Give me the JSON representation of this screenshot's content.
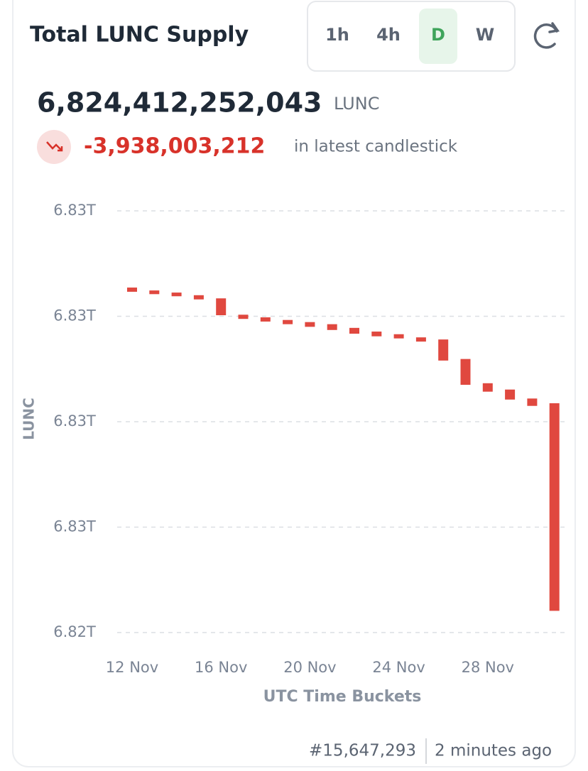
{
  "header": {
    "title": "Total LUNC Supply",
    "intervals": [
      "1h",
      "4h",
      "D",
      "W"
    ],
    "supply": "6,824,412,252,043",
    "unit": "LUNC",
    "change": "-3,938,003,212",
    "change_note": "in latest candlestick"
  },
  "chart_data": {
    "type": "candlestick",
    "ylabel": "LUNC",
    "xlabel": "UTC Time Buckets",
    "color": "#e0483f",
    "grid": true,
    "categories": [
      "12 Nov",
      null,
      null,
      null,
      "16 Nov",
      null,
      null,
      null,
      "20 Nov",
      null,
      null,
      null,
      "24 Nov",
      null,
      null,
      null,
      "28 Nov",
      null,
      null,
      null
    ],
    "open": [
      6830545000000,
      6830490000000,
      6830450000000,
      6830400000000,
      6830340000000,
      6830030000000,
      6829980000000,
      6829930000000,
      6829890000000,
      6829850000000,
      6829780000000,
      6829710000000,
      6829660000000,
      6829600000000,
      6829560000000,
      6829190000000,
      6828730000000,
      6828610000000,
      6828440000000,
      6828350255255
    ],
    "close": [
      6830465000000,
      6830420000000,
      6830380000000,
      6830320000000,
      6830020000000,
      6829950000000,
      6829900000000,
      6829850000000,
      6829800000000,
      6829740000000,
      6829670000000,
      6829620000000,
      6829580000000,
      6829520000000,
      6829160000000,
      6828700000000,
      6828570000000,
      6828420000000,
      6828300000000,
      6824412252043
    ],
    "ylim": [
      6824000000000,
      6832000000000
    ],
    "yticks": [
      {
        "value": 6832000000000,
        "label": "6.83T"
      },
      {
        "value": 6830000000000,
        "label": "6.83T"
      },
      {
        "value": 6828000000000,
        "label": "6.83T"
      },
      {
        "value": 6826000000000,
        "label": "6.83T"
      },
      {
        "value": 6824000000000,
        "label": "6.82T"
      }
    ]
  },
  "footer": {
    "block": "#15,647,293",
    "updated": "2 minutes ago"
  }
}
